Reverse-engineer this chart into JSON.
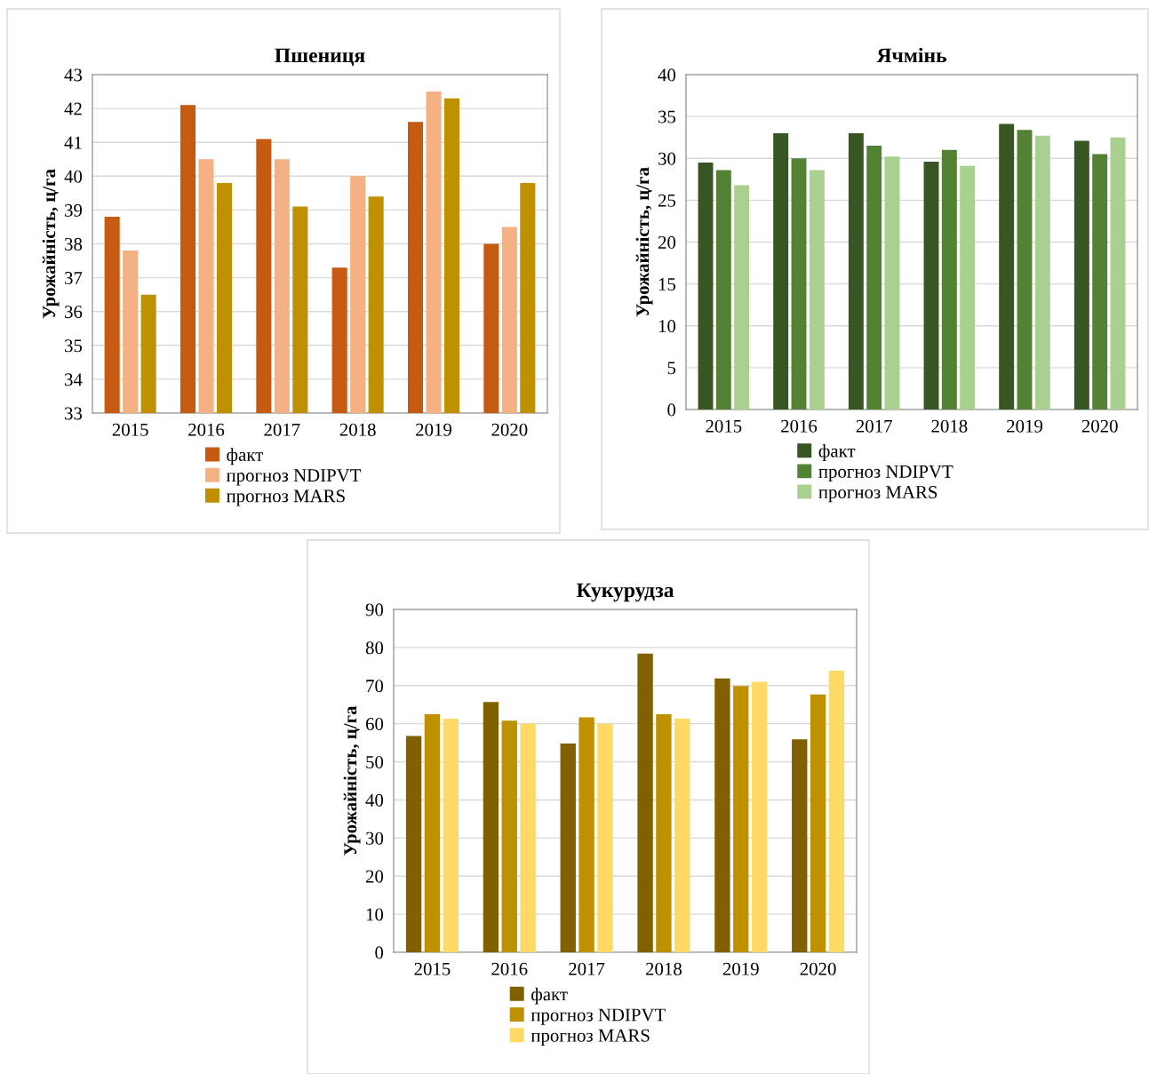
{
  "chart_data": [
    {
      "type": "bar",
      "title": "Пшениця",
      "ylabel": "Урожайність, ц/га",
      "categories": [
        "2015",
        "2016",
        "2017",
        "2018",
        "2019",
        "2020"
      ],
      "ylim": [
        33,
        43
      ],
      "yticks": [
        33,
        34,
        35,
        36,
        37,
        38,
        39,
        40,
        41,
        42,
        43
      ],
      "grid": "y",
      "legend": "bottom",
      "series": [
        {
          "name": "факт",
          "color": "#c55a11",
          "values": [
            38.8,
            42.1,
            41.1,
            37.3,
            41.6,
            38.0
          ]
        },
        {
          "name": "прогноз NDIPVT",
          "color": "#f4b183",
          "values": [
            37.8,
            40.5,
            40.5,
            40.0,
            42.5,
            38.5
          ]
        },
        {
          "name": "прогноз MARS",
          "color": "#bf9000",
          "values": [
            36.5,
            39.8,
            39.1,
            39.4,
            42.3,
            39.8
          ]
        }
      ]
    },
    {
      "type": "bar",
      "title": "Ячмінь",
      "ylabel": "Урожайність, ц/га",
      "categories": [
        "2015",
        "2016",
        "2017",
        "2018",
        "2019",
        "2020"
      ],
      "ylim": [
        0,
        40
      ],
      "yticks": [
        0,
        5,
        10,
        15,
        20,
        25,
        30,
        35,
        40
      ],
      "grid": "y",
      "legend": "bottom",
      "series": [
        {
          "name": "факт",
          "color": "#375623",
          "values": [
            29.5,
            33.0,
            33.0,
            29.6,
            34.1,
            32.1
          ]
        },
        {
          "name": "прогноз NDIPVT",
          "color": "#548235",
          "values": [
            28.6,
            30.0,
            31.5,
            31.0,
            33.4,
            30.5
          ]
        },
        {
          "name": "прогноз MARS",
          "color": "#a9d08e",
          "values": [
            26.8,
            28.6,
            30.2,
            29.1,
            32.7,
            32.5
          ]
        }
      ]
    },
    {
      "type": "bar",
      "title": "Кукурудза",
      "ylabel": "Урожайність, ц/га",
      "categories": [
        "2015",
        "2016",
        "2017",
        "2018",
        "2019",
        "2020"
      ],
      "ylim": [
        0,
        90
      ],
      "yticks": [
        0,
        10,
        20,
        30,
        40,
        50,
        60,
        70,
        80,
        90
      ],
      "grid": "y",
      "legend": "bottom",
      "series": [
        {
          "name": "факт",
          "color": "#806000",
          "values": [
            56.8,
            65.7,
            54.8,
            78.4,
            71.9,
            55.9
          ]
        },
        {
          "name": "прогноз NDIPVT",
          "color": "#bf9000",
          "values": [
            62.5,
            60.8,
            61.7,
            62.5,
            69.9,
            67.7
          ]
        },
        {
          "name": "прогноз MARS",
          "color": "#ffd966",
          "values": [
            61.3,
            60.0,
            60.0,
            61.3,
            71.0,
            73.9
          ]
        }
      ]
    }
  ]
}
